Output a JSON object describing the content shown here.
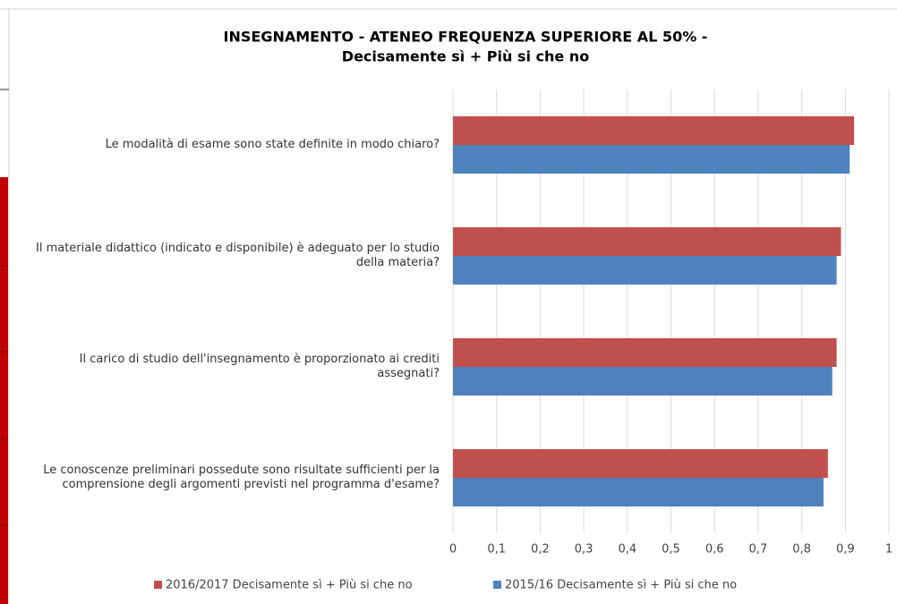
{
  "chart_data": {
    "type": "barh",
    "title": [
      "INSEGNAMENTO - ATENEO FREQUENZA SUPERIORE AL 50% -",
      "Decisamente sì + Più si che no"
    ],
    "categories": [
      "Le modalità di esame sono state definite in modo chiaro?",
      "Il materiale didattico (indicato e disponibile) è adeguato per lo studio della materia?",
      "Il carico di studio dell'insegnamento è proporzionato ai crediti assegnati?",
      "Le conoscenze preliminari possedute sono risultate sufficienti per la comprensione degli argomenti previsti nel programma d'esame?"
    ],
    "series": [
      {
        "name": "2016/2017 Decisamente sì + Più si che no",
        "color": "#c0504d",
        "values": [
          0.92,
          0.89,
          0.88,
          0.86
        ]
      },
      {
        "name": "2015/16 Decisamente sì + Più si che no",
        "color": "#4f81bd",
        "values": [
          0.91,
          0.88,
          0.87,
          0.85
        ]
      }
    ],
    "xlim": [
      0,
      1
    ],
    "xticks": [
      0,
      {
        "value": 0.1,
        "label": "0,1"
      },
      {
        "value": 0.2,
        "label": "0,2"
      },
      {
        "value": 0.3,
        "label": "0,3"
      },
      {
        "value": 0.4,
        "label": "0,4"
      },
      {
        "value": 0.5,
        "label": "0,5"
      },
      {
        "value": 0.6,
        "label": "0,6"
      },
      {
        "value": 0.7,
        "label": "0,7"
      },
      {
        "value": 0.8,
        "label": "0,8"
      },
      {
        "value": 0.9,
        "label": "0,9"
      },
      1
    ],
    "grid": true,
    "legend": "bottom"
  }
}
